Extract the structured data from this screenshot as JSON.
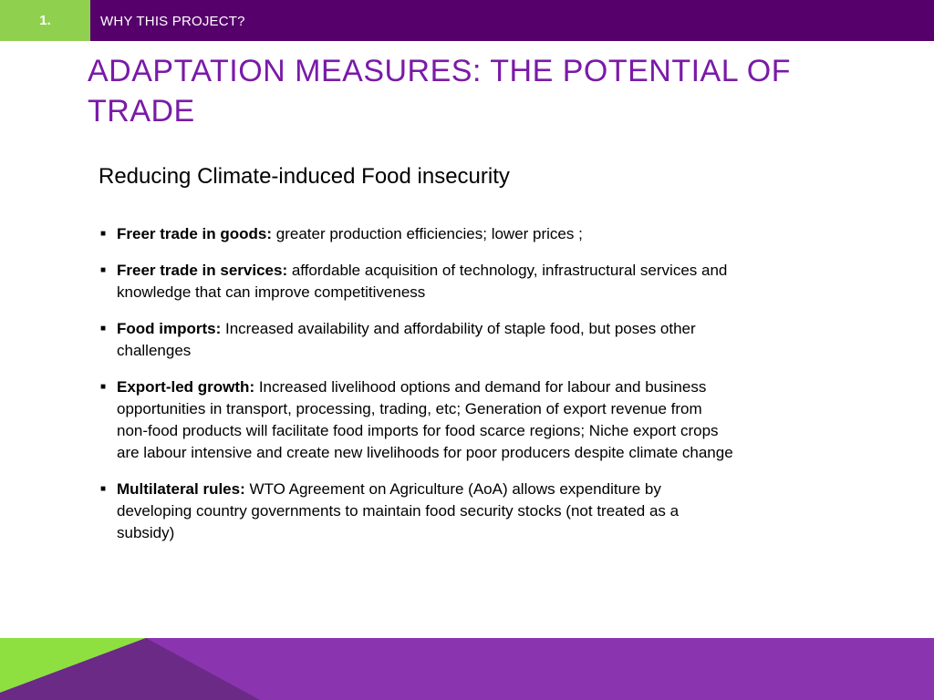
{
  "header": {
    "section_number": "1.",
    "section_title": "WHY THIS PROJECT?"
  },
  "slide": {
    "title": "ADAPTATION MEASURES: THE POTENTIAL OF TRADE",
    "subtitle": "Reducing Climate-induced Food insecurity",
    "bullets": [
      {
        "label": "Freer trade in goods:",
        "text": " greater production efficiencies; lower prices ;"
      },
      {
        "label": "Freer trade in services:",
        "text": " affordable acquisition of technology, infrastructural services and knowledge that can improve competitiveness"
      },
      {
        "label": "Food imports:",
        "text": " Increased availability and affordability of staple food, but poses other challenges"
      },
      {
        "label": "Export-led growth:",
        "text": " Increased livelihood options and demand for labour and business opportunities in transport, processing, trading, etc; Generation of export revenue from non-food products will facilitate food imports for food scarce regions; Niche export crops are labour intensive and create new livelihoods for poor producers despite climate change"
      },
      {
        "label": "Multilateral rules:",
        "text": " WTO Agreement on Agriculture (AoA) allows expenditure by developing country governments to maintain food security stocks (not treated as a subsidy)"
      }
    ]
  },
  "colors": {
    "header_purple": "#56006b",
    "accent_green": "#8fd14f",
    "title_purple": "#7a1aa8",
    "footer_purple": "#8b34b0"
  }
}
